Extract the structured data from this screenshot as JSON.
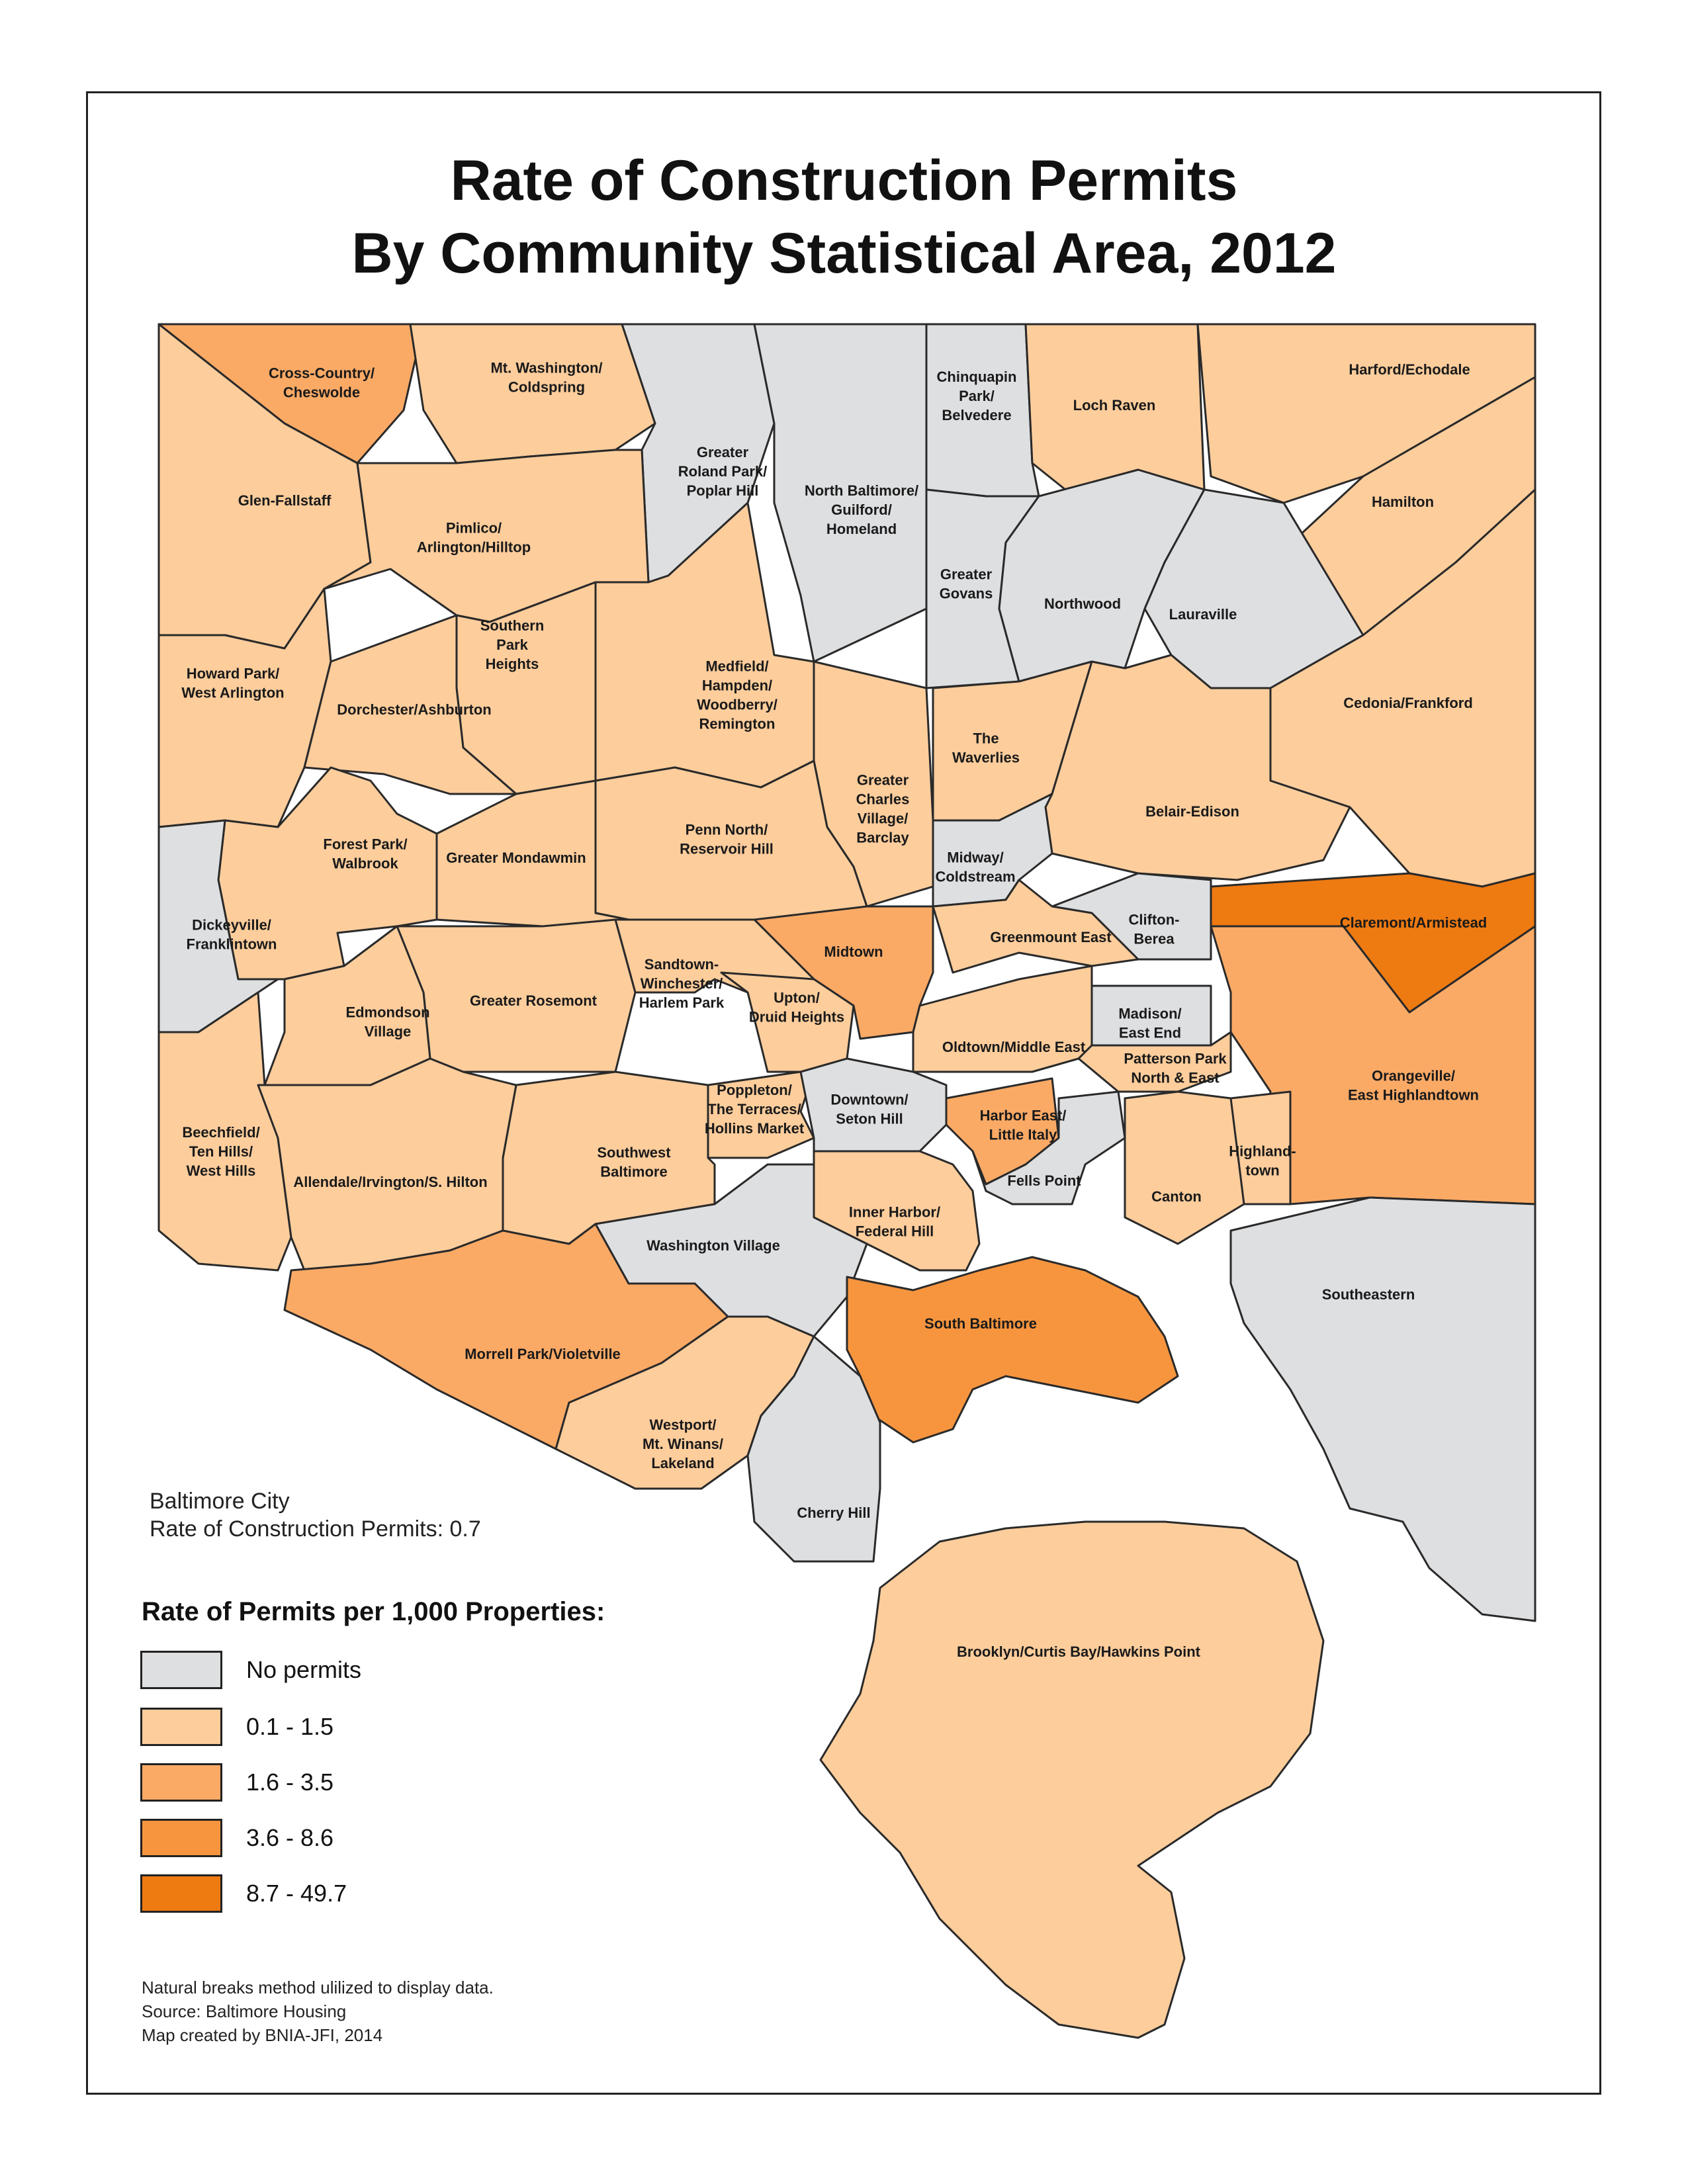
{
  "title": {
    "line1": "Rate of Construction Permits",
    "line2": "By Community Statistical Area, 2012"
  },
  "city_summary": {
    "line1": "Baltimore City",
    "line2": "Rate of Construction Permits: 0.7"
  },
  "legend": {
    "title": "Rate of Permits per 1,000 Properties:",
    "classes": [
      {
        "label": "No permits",
        "color": "#dedfe1"
      },
      {
        "label": "0.1 - 1.5",
        "color": "#fdcd9c"
      },
      {
        "label": "1.6 - 3.5",
        "color": "#fbaa66"
      },
      {
        "label": "3.6 - 8.6",
        "color": "#f7953f"
      },
      {
        "label": "8.7 - 49.7",
        "color": "#ee7a12"
      }
    ]
  },
  "notes": {
    "line1": "Natural breaks method ulilized to display data.",
    "line2": "Source: Baltimore Housing",
    "line3": "Map created by BNIA-JFI, 2014"
  },
  "areas": [
    {
      "name": [
        "Cross-Country/",
        "Cheswolde"
      ],
      "class": 2
    },
    {
      "name": [
        "Mt. Washington/",
        "Coldspring"
      ],
      "class": 1
    },
    {
      "name": [
        "Greater",
        "Roland Park/",
        "Poplar Hill"
      ],
      "class": 0
    },
    {
      "name": [
        "North Baltimore/",
        "Guilford/",
        "Homeland"
      ],
      "class": 0
    },
    {
      "name": [
        "Chinquapin",
        "Park/",
        "Belvedere"
      ],
      "class": 0
    },
    {
      "name": [
        "Loch Raven"
      ],
      "class": 1
    },
    {
      "name": [
        "Harford/Echodale"
      ],
      "class": 1
    },
    {
      "name": [
        "Glen-Fallstaff"
      ],
      "class": 1
    },
    {
      "name": [
        "Pimlico/",
        "Arlington/Hilltop"
      ],
      "class": 1
    },
    {
      "name": [
        "Hamilton"
      ],
      "class": 1
    },
    {
      "name": [
        "Greater",
        "Govans"
      ],
      "class": 0
    },
    {
      "name": [
        "Northwood"
      ],
      "class": 0
    },
    {
      "name": [
        "Lauraville"
      ],
      "class": 0
    },
    {
      "name": [
        "Southern",
        "Park",
        "Heights"
      ],
      "class": 1
    },
    {
      "name": [
        "Howard Park/",
        "West Arlington"
      ],
      "class": 1
    },
    {
      "name": [
        "Medfield/",
        "Hampden/",
        "Woodberry/",
        "Remington"
      ],
      "class": 1
    },
    {
      "name": [
        "Dorchester/Ashburton"
      ],
      "class": 1
    },
    {
      "name": [
        "Cedonia/Frankford"
      ],
      "class": 1
    },
    {
      "name": [
        "The",
        "Waverlies"
      ],
      "class": 1
    },
    {
      "name": [
        "Greater",
        "Charles",
        "Village/",
        "Barclay"
      ],
      "class": 1
    },
    {
      "name": [
        "Belair-Edison"
      ],
      "class": 1
    },
    {
      "name": [
        "Forest Park/",
        "Walbrook"
      ],
      "class": 1
    },
    {
      "name": [
        "Penn North/",
        "Reservoir Hill"
      ],
      "class": 1
    },
    {
      "name": [
        "Greater Mondawmin"
      ],
      "class": 1
    },
    {
      "name": [
        "Midway/",
        "Coldstream"
      ],
      "class": 0
    },
    {
      "name": [
        "Dickeyville/",
        "Franklintown"
      ],
      "class": 0
    },
    {
      "name": [
        "Clifton-",
        "Berea"
      ],
      "class": 0
    },
    {
      "name": [
        "Claremont/Armistead"
      ],
      "class": 4
    },
    {
      "name": [
        "Midtown"
      ],
      "class": 2
    },
    {
      "name": [
        "Greenmount East"
      ],
      "class": 1
    },
    {
      "name": [
        "Sandtown-",
        "Winchester/",
        "Harlem Park"
      ],
      "class": 1
    },
    {
      "name": [
        "Upton/",
        "Druid Heights"
      ],
      "class": 1
    },
    {
      "name": [
        "Greater Rosemont"
      ],
      "class": 1
    },
    {
      "name": [
        "Edmondson",
        "Village"
      ],
      "class": 1
    },
    {
      "name": [
        "Madison/",
        "East End"
      ],
      "class": 0
    },
    {
      "name": [
        "Oldtown/Middle East"
      ],
      "class": 1
    },
    {
      "name": [
        "Patterson Park",
        "North & East"
      ],
      "class": 1
    },
    {
      "name": [
        "Orangeville/",
        "East Highlandtown"
      ],
      "class": 2
    },
    {
      "name": [
        "Poppleton/",
        "The Terraces/",
        "Hollins Market"
      ],
      "class": 1
    },
    {
      "name": [
        "Downtown/",
        "Seton Hill"
      ],
      "class": 0
    },
    {
      "name": [
        "Harbor East/",
        "Little Italy"
      ],
      "class": 2
    },
    {
      "name": [
        "Beechfield/",
        "Ten Hills/",
        "West Hills"
      ],
      "class": 1
    },
    {
      "name": [
        "Southwest",
        "Baltimore"
      ],
      "class": 1
    },
    {
      "name": [
        "Highland-",
        "town"
      ],
      "class": 1
    },
    {
      "name": [
        "Allendale/Irvington/S. Hilton"
      ],
      "class": 1
    },
    {
      "name": [
        "Fells Point"
      ],
      "class": 0
    },
    {
      "name": [
        "Canton"
      ],
      "class": 1
    },
    {
      "name": [
        "Inner Harbor/",
        "Federal Hill"
      ],
      "class": 1
    },
    {
      "name": [
        "Washington Village"
      ],
      "class": 0
    },
    {
      "name": [
        "Southeastern"
      ],
      "class": 0
    },
    {
      "name": [
        "South Baltimore"
      ],
      "class": 3
    },
    {
      "name": [
        "Morrell Park/Violetville"
      ],
      "class": 2
    },
    {
      "name": [
        "Westport/",
        "Mt. Winans/",
        "Lakeland"
      ],
      "class": 1
    },
    {
      "name": [
        "Cherry Hill"
      ],
      "class": 0
    },
    {
      "name": [
        "Brooklyn/Curtis Bay/Hawkins Point"
      ],
      "class": 1
    }
  ]
}
